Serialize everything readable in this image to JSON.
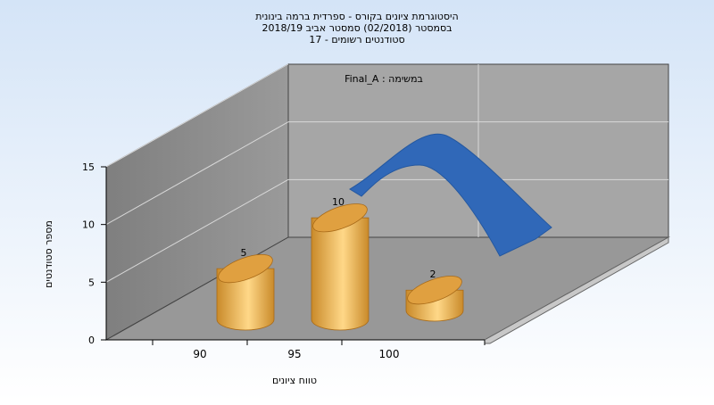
{
  "chart_data": {
    "type": "bar",
    "title_lines": [
      "היסטוגרמת ציונים בקורס - ספרדית ברמה בינונית",
      "בסמסטר  (02/2018)  סמסטר אביב 2018/19",
      "סטודנטים רשומים - 17"
    ],
    "legend_label": "Final_A : במשימה",
    "xlabel": "טווח ציונים",
    "ylabel": "מספר סטודנטים",
    "categories": [
      "90",
      "95",
      "100"
    ],
    "values": [
      5,
      10,
      2
    ],
    "value_labels": [
      "5",
      "10",
      "2"
    ],
    "y_ticks": [
      "0",
      "5",
      "10",
      "15"
    ],
    "ylim": [
      0,
      15
    ],
    "grid": true,
    "curve": {
      "description": "fitted distribution overlay",
      "color": "#3068b8",
      "peak_y": 17.0
    },
    "colors": {
      "bar_dark": "#c98a2a",
      "bar_light": "#ffd888",
      "bar_top": "#e0a040",
      "background_top": "#d4e4f7",
      "background_bottom": "#ffffff",
      "back_wall": "#a6a6a6",
      "left_wall": "#8a8a8a",
      "floor": "#989898"
    }
  }
}
